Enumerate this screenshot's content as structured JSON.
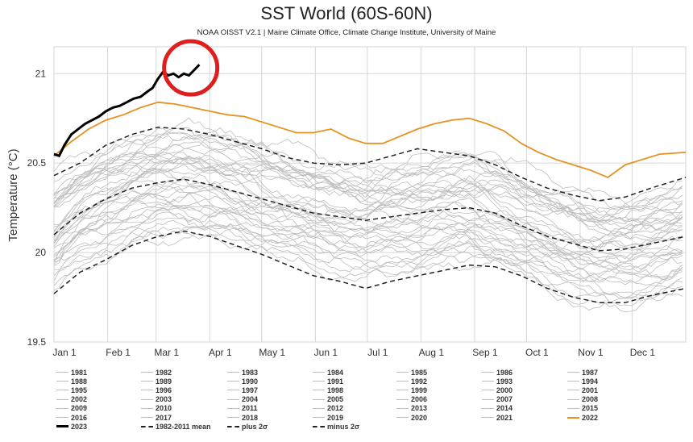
{
  "chart_data": {
    "type": "line",
    "title": "SST World (60S-60N)",
    "subtitle": "NOAA OISST V2.1 | Maine Climate Office, Climate Change Institute, University of Maine",
    "xlabel": "",
    "ylabel": "Temperature (°C)",
    "ylim": [
      19.5,
      21.15
    ],
    "xlim": [
      0,
      365
    ],
    "yticks": [
      19.5,
      20,
      20.5,
      21
    ],
    "ytick_labels": [
      "19.5",
      "20",
      "20.5",
      "21"
    ],
    "xticks": [
      0,
      31,
      59,
      90,
      120,
      151,
      181,
      212,
      243,
      273,
      304,
      334
    ],
    "xtick_labels": [
      "Jan 1",
      "Feb 1",
      "Mar 1",
      "Apr 1",
      "May 1",
      "Jun 1",
      "Jul 1",
      "Aug 1",
      "Sep 1",
      "Oct 1",
      "Nov 1",
      "Dec 1"
    ],
    "grid": true,
    "annotation": "red circle around latest 2023 values",
    "series": [
      {
        "name": "2023",
        "color": "#000000",
        "style": "solid-bold",
        "x": [
          0,
          3,
          6,
          10,
          14,
          18,
          22,
          26,
          30,
          34,
          38,
          42,
          46,
          50,
          54,
          57,
          60,
          63,
          66,
          69,
          72,
          75,
          78,
          81,
          84
        ],
        "y": [
          20.55,
          20.54,
          20.6,
          20.66,
          20.69,
          20.72,
          20.74,
          20.76,
          20.79,
          20.81,
          20.82,
          20.84,
          20.86,
          20.87,
          20.9,
          20.92,
          20.97,
          21.01,
          20.99,
          21.0,
          20.98,
          21.0,
          20.99,
          21.02,
          21.05
        ]
      },
      {
        "name": "2022",
        "color": "#e69121",
        "style": "solid",
        "x": [
          0,
          10,
          20,
          30,
          40,
          50,
          60,
          70,
          80,
          90,
          100,
          110,
          120,
          130,
          140,
          150,
          160,
          170,
          180,
          190,
          200,
          210,
          220,
          230,
          240,
          250,
          260,
          270,
          280,
          290,
          300,
          310,
          320,
          330,
          340,
          350,
          365
        ],
        "y": [
          20.54,
          20.62,
          20.69,
          20.74,
          20.77,
          20.81,
          20.84,
          20.83,
          20.81,
          20.79,
          20.77,
          20.76,
          20.73,
          20.7,
          20.67,
          20.67,
          20.69,
          20.64,
          20.61,
          20.61,
          20.65,
          20.69,
          20.72,
          20.74,
          20.75,
          20.72,
          20.68,
          20.61,
          20.56,
          20.52,
          20.49,
          20.46,
          20.42,
          20.49,
          20.52,
          20.55,
          20.56
        ]
      },
      {
        "name": "1982-2011 mean",
        "color": "#222222",
        "style": "dashed",
        "x": [
          0,
          15,
          30,
          45,
          60,
          75,
          90,
          105,
          120,
          135,
          150,
          165,
          180,
          195,
          210,
          225,
          240,
          255,
          270,
          285,
          300,
          315,
          330,
          345,
          365
        ],
        "y": [
          20.1,
          20.22,
          20.3,
          20.36,
          20.39,
          20.41,
          20.38,
          20.34,
          20.3,
          20.26,
          20.22,
          20.2,
          20.18,
          20.2,
          20.22,
          20.24,
          20.25,
          20.22,
          20.15,
          20.09,
          20.05,
          20.01,
          20.02,
          20.05,
          20.09
        ]
      },
      {
        "name": "plus 2σ",
        "color": "#222222",
        "style": "dashed",
        "x": [
          0,
          15,
          30,
          45,
          60,
          75,
          90,
          105,
          120,
          135,
          150,
          165,
          180,
          195,
          210,
          225,
          240,
          255,
          270,
          285,
          300,
          315,
          330,
          345,
          365
        ],
        "y": [
          20.43,
          20.5,
          20.6,
          20.66,
          20.7,
          20.69,
          20.66,
          20.62,
          20.58,
          20.53,
          20.5,
          20.49,
          20.5,
          20.54,
          20.58,
          20.56,
          20.54,
          20.49,
          20.42,
          20.36,
          20.32,
          20.29,
          20.31,
          20.36,
          20.42
        ]
      },
      {
        "name": "minus 2σ",
        "color": "#222222",
        "style": "dashed",
        "x": [
          0,
          15,
          30,
          45,
          60,
          75,
          90,
          105,
          120,
          135,
          150,
          165,
          180,
          195,
          210,
          225,
          240,
          255,
          270,
          285,
          300,
          315,
          330,
          345,
          365
        ],
        "y": [
          19.77,
          19.89,
          19.96,
          20.04,
          20.09,
          20.12,
          20.09,
          20.04,
          19.99,
          19.93,
          19.87,
          19.84,
          19.8,
          19.84,
          19.87,
          19.9,
          19.93,
          19.92,
          19.87,
          19.8,
          19.75,
          19.72,
          19.72,
          19.76,
          19.8
        ]
      }
    ],
    "legend": {
      "placement": "bottom",
      "columns": 7,
      "entries": [
        "1981",
        "1982",
        "1983",
        "1984",
        "1985",
        "1986",
        "1987",
        "1988",
        "1989",
        "1990",
        "1991",
        "1992",
        "1993",
        "1994",
        "1995",
        "1996",
        "1997",
        "1998",
        "1999",
        "2000",
        "2001",
        "2002",
        "2003",
        "2004",
        "2005",
        "2006",
        "2007",
        "2008",
        "2009",
        "2010",
        "2011",
        "2012",
        "2013",
        "2014",
        "2015",
        "2016",
        "2017",
        "2018",
        "2019",
        "2020",
        "2021",
        "2022",
        "2023",
        "1982-2011 mean",
        "plus 2σ",
        "minus 2σ"
      ]
    },
    "legend_styles": {
      "2022": {
        "color": "#e69121",
        "dash": "solid"
      },
      "2023": {
        "color": "#000000",
        "dash": "solid"
      },
      "1982-2011 mean": {
        "color": "#222222",
        "dash": "dashed"
      },
      "plus 2σ": {
        "color": "#222222",
        "dash": "dashed"
      },
      "minus 2σ": {
        "color": "#222222",
        "dash": "dashed"
      }
    },
    "background_years_color": "#bdbdbd"
  }
}
